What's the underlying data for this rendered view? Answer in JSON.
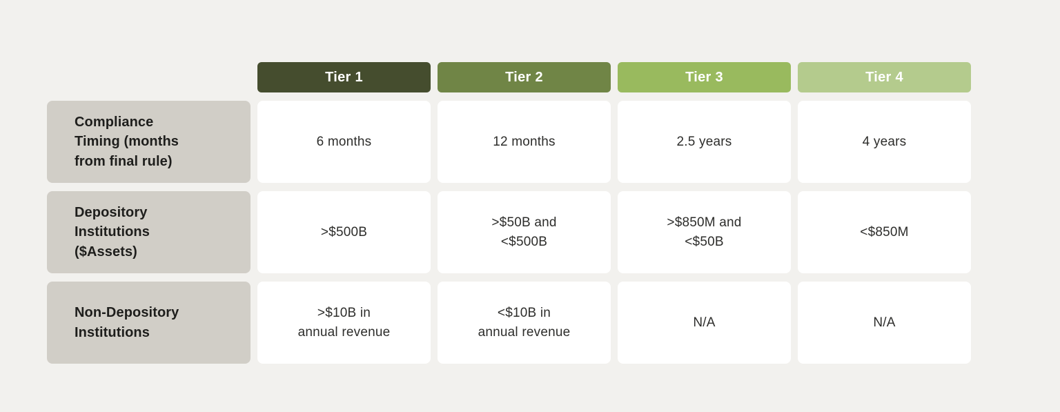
{
  "chart_data": {
    "type": "table",
    "title": "",
    "columns": [
      "",
      "Tier 1",
      "Tier 2",
      "Tier 3",
      "Tier 4"
    ],
    "rows": [
      [
        "Compliance Timing (months from final rule)",
        "6 months",
        "12 months",
        "2.5 years",
        "4 years"
      ],
      [
        "Depository Institutions ($Assets)",
        ">$500B",
        ">$50B and <$500B",
        ">$850M and <$50B",
        "<$850M"
      ],
      [
        "Non-Depository Institutions",
        ">$10B in annual revenue",
        "<$10B in annual revenue",
        "N/A",
        "N/A"
      ]
    ],
    "legend": "none",
    "grid": "off"
  },
  "colors": {
    "page_bg": "#f2f1ee",
    "row_label_bg": "#d1cec7",
    "cell_bg": "#ffffff",
    "header_text": "#ffffff",
    "label_text": "#1e1e1c",
    "cell_text": "#2d2d2b",
    "tier1": "#454d2e",
    "tier2": "#708546",
    "tier3": "#99ba5e",
    "tier4": "#b4cb8d"
  },
  "table": {
    "headers": [
      "Tier 1",
      "Tier 2",
      "Tier 3",
      "Tier 4"
    ],
    "rows": [
      {
        "label": "Compliance\nTiming (months\nfrom final rule)",
        "values": [
          "6 months",
          "12 months",
          "2.5 years",
          "4 years"
        ]
      },
      {
        "label": "Depository\nInstitutions\n($Assets)",
        "values": [
          ">$500B",
          ">$50B and\n<$500B",
          ">$850M and\n<$50B",
          "<$850M"
        ]
      },
      {
        "label": "Non-Depository\nInstitutions",
        "values": [
          ">$10B in\nannual revenue",
          "<$10B in\nannual revenue",
          "N/A",
          "N/A"
        ]
      }
    ]
  }
}
